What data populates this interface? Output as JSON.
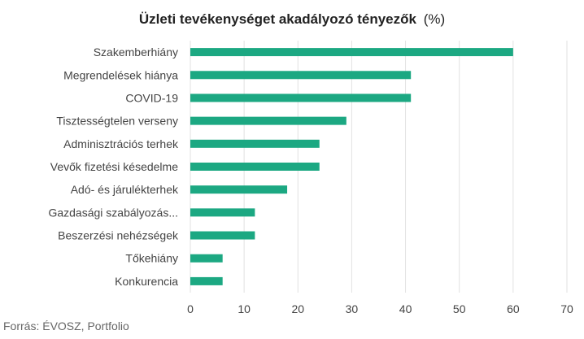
{
  "chart_data": {
    "type": "bar",
    "orientation": "horizontal",
    "title": "Üzleti tevékenységet akadályozó tényezők",
    "title_unit": "(%)",
    "categories": [
      "Szakemberhiány",
      "Megrendelések hiánya",
      "COVID-19",
      "Tisztességtelen verseny",
      "Adminisztrációs terhek",
      "Vevők fizetési késedelme",
      "Adó- és járulékterhek",
      "Gazdasági szabályozás...",
      "Beszerzési nehézségek",
      "Tőkehiány",
      "Konkurencia"
    ],
    "values": [
      60,
      41,
      41,
      29,
      24,
      24,
      18,
      12,
      12,
      6,
      6
    ],
    "xlim": [
      0,
      70
    ],
    "xticks": [
      0,
      10,
      20,
      30,
      40,
      50,
      60,
      70
    ],
    "grid": true,
    "bar_color": "#1ca882",
    "grid_color": "#e2e2e2",
    "source": "Forrás: ÉVOSZ, Portfolio"
  }
}
